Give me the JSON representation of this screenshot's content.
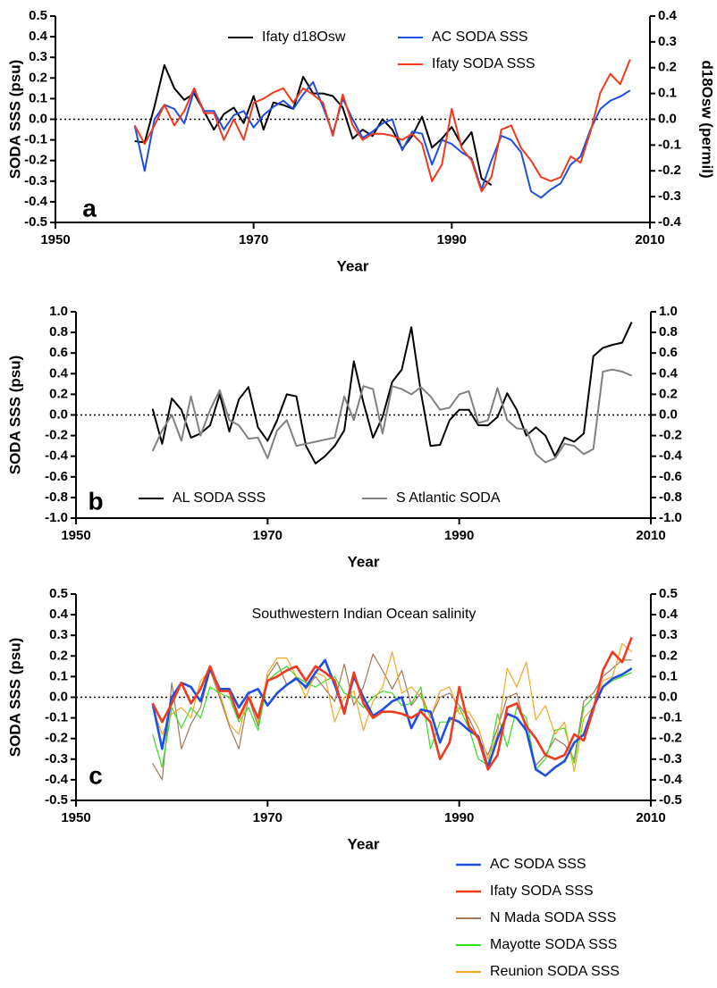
{
  "chart_data": [
    {
      "type": "line",
      "panel_label": "a",
      "x_label": "Year",
      "y_label": "SODA SSS (psu)",
      "y2_label": "d18Osw (permil)",
      "xlim": [
        1950,
        2010
      ],
      "xticks": [
        1950,
        1970,
        1990,
        2010
      ],
      "ylim": [
        -0.5,
        0.5
      ],
      "yticks": [
        -0.5,
        -0.4,
        -0.3,
        -0.2,
        -0.1,
        {
          "value": 0,
          "label": "0.0"
        },
        0.1,
        0.2,
        0.3,
        0.4,
        0.5
      ],
      "y2lim": [
        -0.4,
        0.4
      ],
      "y2ticks": [
        -0.4,
        -0.3,
        -0.2,
        -0.1,
        {
          "value": 0,
          "label": "0.0"
        },
        0.1,
        0.2,
        0.3,
        0.4
      ],
      "zero_line": true,
      "legend": "upper center",
      "x": [
        1958,
        1959,
        1960,
        1961,
        1962,
        1963,
        1964,
        1965,
        1966,
        1967,
        1968,
        1969,
        1970,
        1971,
        1972,
        1973,
        1974,
        1975,
        1976,
        1977,
        1978,
        1979,
        1980,
        1981,
        1982,
        1983,
        1984,
        1985,
        1986,
        1987,
        1988,
        1989,
        1990,
        1991,
        1992,
        1993,
        1994,
        1995,
        1996,
        1997,
        1998,
        1999,
        2000,
        2001,
        2002,
        2003,
        2004,
        2005,
        2006,
        2007,
        2008
      ],
      "series": [
        {
          "name": "Ifaty d18Osw",
          "color": "#000000",
          "axis": "y2",
          "line_width": 2,
          "values": [
            -0.085,
            -0.09,
            0.05,
            0.21,
            0.12,
            0.075,
            0.1,
            0.03,
            -0.04,
            0.02,
            0.045,
            -0.015,
            0.09,
            -0.04,
            0.065,
            0.055,
            0.04,
            0.165,
            0.1,
            0.1,
            0.09,
            0.045,
            -0.075,
            -0.04,
            -0.065,
            0,
            -0.04,
            -0.115,
            -0.065,
            0.01,
            -0.11,
            -0.075,
            -0.03,
            -0.1,
            -0.05,
            -0.23,
            -0.255,
            null,
            null,
            null,
            null,
            null,
            null,
            null,
            null,
            null,
            null,
            null,
            null,
            null,
            null
          ]
        },
        {
          "name": "AC SODA SSS",
          "color": "#1f4fe0",
          "line_width": 2,
          "values": [
            -0.03,
            -0.25,
            0,
            0.07,
            0.05,
            -0.02,
            0.14,
            0.04,
            0.04,
            -0.05,
            0.02,
            0.04,
            -0.04,
            0.02,
            0.06,
            0.09,
            0.05,
            0.12,
            0.18,
            0.06,
            -0.07,
            0.1,
            0,
            -0.09,
            -0.06,
            -0.02,
            0,
            -0.15,
            -0.06,
            -0.07,
            -0.22,
            -0.1,
            -0.12,
            -0.16,
            -0.19,
            -0.34,
            -0.2,
            -0.08,
            -0.1,
            -0.16,
            -0.35,
            -0.38,
            -0.34,
            -0.31,
            -0.22,
            -0.18,
            -0.05,
            0.05,
            0.09,
            0.11,
            0.14
          ]
        },
        {
          "name": "Ifaty SODA SSS",
          "color": "#f03a1e",
          "line_width": 2,
          "values": [
            -0.03,
            -0.12,
            -0.03,
            0.07,
            -0.03,
            0.04,
            0.15,
            0.03,
            0.03,
            -0.1,
            0,
            -0.1,
            0.08,
            0.1,
            0.13,
            0.15,
            0.08,
            0.15,
            0.12,
            0.08,
            -0.08,
            0.12,
            -0.03,
            -0.1,
            -0.07,
            -0.07,
            -0.08,
            -0.1,
            -0.07,
            -0.12,
            -0.3,
            -0.22,
            0.05,
            -0.14,
            -0.2,
            -0.35,
            -0.28,
            -0.05,
            -0.03,
            -0.14,
            -0.2,
            -0.28,
            -0.3,
            -0.28,
            -0.18,
            -0.21,
            -0.06,
            0.13,
            0.22,
            0.17,
            0.29
          ]
        }
      ]
    },
    {
      "type": "line",
      "panel_label": "b",
      "x_label": "Year",
      "y_label": "SODA SSS (psu)",
      "xlim": [
        1950,
        2010
      ],
      "xticks": [
        1950,
        1970,
        1990,
        2010
      ],
      "ylim": [
        -1,
        1
      ],
      "yticks": [
        {
          "value": -1,
          "label": "-1.0"
        },
        -0.8,
        -0.6,
        -0.4,
        -0.2,
        {
          "value": 0,
          "label": "0.0"
        },
        0.2,
        0.4,
        0.6,
        0.8,
        {
          "value": 1,
          "label": "1.0"
        }
      ],
      "y2lim": [
        -1,
        1
      ],
      "y2ticks": [
        {
          "value": -1,
          "label": "-1.0"
        },
        -0.8,
        -0.6,
        -0.4,
        -0.2,
        {
          "value": 0,
          "label": "0.0"
        },
        0.2,
        0.4,
        0.6,
        0.8,
        {
          "value": 1,
          "label": "1.0"
        }
      ],
      "zero_line": true,
      "legend": "lower center",
      "x": [
        1958,
        1959,
        1960,
        1961,
        1962,
        1963,
        1964,
        1965,
        1966,
        1967,
        1968,
        1969,
        1970,
        1971,
        1972,
        1973,
        1974,
        1975,
        1976,
        1977,
        1978,
        1979,
        1980,
        1981,
        1982,
        1983,
        1984,
        1985,
        1986,
        1987,
        1988,
        1989,
        1990,
        1991,
        1992,
        1993,
        1994,
        1995,
        1996,
        1997,
        1998,
        1999,
        2000,
        2001,
        2002,
        2003,
        2004,
        2005,
        2006,
        2007,
        2008
      ],
      "series": [
        {
          "name": "AL SODA SSS",
          "color": "#000000",
          "line_width": 2,
          "values": [
            0.06,
            -0.28,
            0.16,
            0.05,
            -0.22,
            -0.18,
            -0.1,
            0.2,
            -0.16,
            0.15,
            0.27,
            -0.12,
            -0.25,
            -0.05,
            0.2,
            0.18,
            -0.3,
            -0.47,
            -0.4,
            -0.3,
            -0.15,
            0.52,
            0.12,
            -0.22,
            -0.02,
            0.32,
            0.44,
            0.85,
            0.22,
            -0.3,
            -0.29,
            -0.05,
            0.05,
            0.05,
            -0.1,
            -0.1,
            -0.02,
            0.21,
            0.05,
            -0.2,
            -0.12,
            -0.2,
            -0.4,
            -0.22,
            -0.26,
            -0.18,
            0.57,
            0.65,
            0.68,
            0.7,
            0.9
          ]
        },
        {
          "name": "S Atlantic SODA",
          "color": "#808080",
          "line_width": 2,
          "values": [
            -0.35,
            -0.15,
            0,
            -0.25,
            0.18,
            -0.2,
            0.05,
            0.24,
            -0.05,
            -0.1,
            -0.23,
            -0.22,
            -0.42,
            -0.15,
            -0.05,
            -0.3,
            -0.28,
            -0.26,
            -0.24,
            -0.22,
            0.18,
            -0.05,
            0.28,
            0.25,
            -0.18,
            0.28,
            0.25,
            0.2,
            0.27,
            0.18,
            0.05,
            0.07,
            0.2,
            0.23,
            -0.08,
            -0.05,
            0.26,
            -0.05,
            -0.13,
            -0.14,
            -0.38,
            -0.46,
            -0.42,
            -0.28,
            -0.3,
            -0.38,
            -0.33,
            0.42,
            0.44,
            0.42,
            0.38
          ]
        }
      ]
    },
    {
      "type": "line",
      "panel_label": "c",
      "title": "Southwestern Indian Ocean salinity",
      "x_label": "Year",
      "y_label": "SODA SSS (psu)",
      "xlim": [
        1950,
        2010
      ],
      "xticks": [
        1950,
        1970,
        1990,
        2010
      ],
      "ylim": [
        -0.5,
        0.5
      ],
      "yticks": [
        -0.5,
        -0.4,
        -0.3,
        -0.2,
        -0.1,
        {
          "value": 0,
          "label": "0.0"
        },
        0.1,
        0.2,
        0.3,
        0.4,
        0.5
      ],
      "y2lim": [
        -0.5,
        0.5
      ],
      "y2ticks": [
        -0.5,
        -0.4,
        -0.3,
        -0.2,
        -0.1,
        {
          "value": 0,
          "label": "0.0"
        },
        0.1,
        0.2,
        0.3,
        0.4,
        0.5
      ],
      "zero_line": true,
      "legend": "below",
      "x": [
        1958,
        1959,
        1960,
        1961,
        1962,
        1963,
        1964,
        1965,
        1966,
        1967,
        1968,
        1969,
        1970,
        1971,
        1972,
        1973,
        1974,
        1975,
        1976,
        1977,
        1978,
        1979,
        1980,
        1981,
        1982,
        1983,
        1984,
        1985,
        1986,
        1987,
        1988,
        1989,
        1990,
        1991,
        1992,
        1993,
        1994,
        1995,
        1996,
        1997,
        1998,
        1999,
        2000,
        2001,
        2002,
        2003,
        2004,
        2005,
        2006,
        2007,
        2008
      ],
      "series": [
        {
          "name": "N Mada SODA SSS",
          "color": "#a0785a",
          "line_width": 1.2,
          "values": [
            -0.32,
            -0.4,
            0.07,
            -0.25,
            -0.13,
            -0.05,
            0.13,
            0,
            -0.14,
            -0.25,
            0,
            -0.14,
            0.1,
            0.17,
            0.06,
            0.1,
            0.04,
            0.1,
            0.04,
            -0.02,
            0.16,
            -0.04,
            0.05,
            0.21,
            0.13,
            0.04,
            0.13,
            -0.04,
            0.02,
            -0.1,
            0,
            0.02,
            -0.04,
            -0.1,
            -0.2,
            -0.28,
            -0.15,
            0,
            0.02,
            -0.17,
            -0.33,
            -0.28,
            -0.2,
            -0.23,
            -0.3,
            -0.02,
            0.02,
            0.1,
            0.14,
            0.18,
            0.18
          ]
        },
        {
          "name": "Mayotte SODA SSS",
          "color": "#33dd22",
          "line_width": 1.2,
          "values": [
            -0.18,
            -0.34,
            -0.05,
            -0.15,
            -0.05,
            -0.1,
            0.05,
            0.02,
            0,
            -0.12,
            -0.05,
            -0.16,
            0.08,
            0.12,
            0.15,
            0.1,
            0.07,
            0.05,
            0.08,
            0.1,
            0.02,
            0,
            -0.05,
            0,
            0.03,
            0.02,
            -0.04,
            -0.03,
            0.05,
            -0.25,
            -0.12,
            -0.12,
            -0.05,
            -0.15,
            -0.3,
            -0.33,
            -0.08,
            -0.24,
            -0.05,
            -0.1,
            -0.35,
            -0.3,
            -0.16,
            -0.15,
            -0.32,
            -0.05,
            0,
            0.05,
            0.08,
            0.1,
            0.12
          ]
        },
        {
          "name": "Reunion SODA SSS",
          "color": "#f5a623",
          "line_width": 1.2,
          "values": [
            -0.05,
            -0.18,
            -0.08,
            -0.05,
            -0.1,
            0.08,
            0.13,
            0.02,
            -0.13,
            -0.18,
            0.03,
            -0.12,
            0.12,
            0.19,
            0.19,
            0.1,
            0,
            0.12,
            0.1,
            -0.12,
            0,
            0.03,
            -0.16,
            -0.02,
            0.05,
            0.22,
            0.02,
            0.05,
            0,
            -0.1,
            0.03,
            0.05,
            -0.08,
            -0.07,
            -0.15,
            -0.3,
            -0.18,
            0.14,
            0.05,
            0.17,
            -0.11,
            -0.04,
            -0.18,
            -0.12,
            -0.36,
            -0.1,
            -0.05,
            0.08,
            0.1,
            0.26,
            0.22
          ]
        },
        {
          "name": "AC SODA SSS",
          "color": "#1f4fe0",
          "line_width": 2.6,
          "values": [
            -0.03,
            -0.25,
            0,
            0.07,
            0.05,
            -0.02,
            0.14,
            0.04,
            0.04,
            -0.05,
            0.02,
            0.04,
            -0.04,
            0.02,
            0.06,
            0.09,
            0.05,
            0.12,
            0.18,
            0.06,
            -0.07,
            0.1,
            0,
            -0.09,
            -0.06,
            -0.02,
            0,
            -0.15,
            -0.06,
            -0.07,
            -0.22,
            -0.1,
            -0.12,
            -0.16,
            -0.19,
            -0.34,
            -0.2,
            -0.08,
            -0.1,
            -0.16,
            -0.35,
            -0.38,
            -0.34,
            -0.31,
            -0.22,
            -0.18,
            -0.05,
            0.05,
            0.09,
            0.11,
            0.14
          ]
        },
        {
          "name": "Ifaty SODA SSS",
          "color": "#f03a1e",
          "line_width": 2.6,
          "values": [
            -0.03,
            -0.12,
            -0.03,
            0.07,
            -0.03,
            0.04,
            0.15,
            0.03,
            0.03,
            -0.1,
            0,
            -0.1,
            0.08,
            0.1,
            0.13,
            0.15,
            0.08,
            0.15,
            0.12,
            0.08,
            -0.08,
            0.12,
            -0.03,
            -0.1,
            -0.07,
            -0.07,
            -0.08,
            -0.1,
            -0.07,
            -0.12,
            -0.3,
            -0.22,
            0.05,
            -0.14,
            -0.2,
            -0.35,
            -0.28,
            -0.05,
            -0.03,
            -0.14,
            -0.2,
            -0.28,
            -0.3,
            -0.28,
            -0.18,
            -0.21,
            -0.06,
            0.13,
            0.22,
            0.17,
            0.29
          ]
        }
      ]
    }
  ]
}
